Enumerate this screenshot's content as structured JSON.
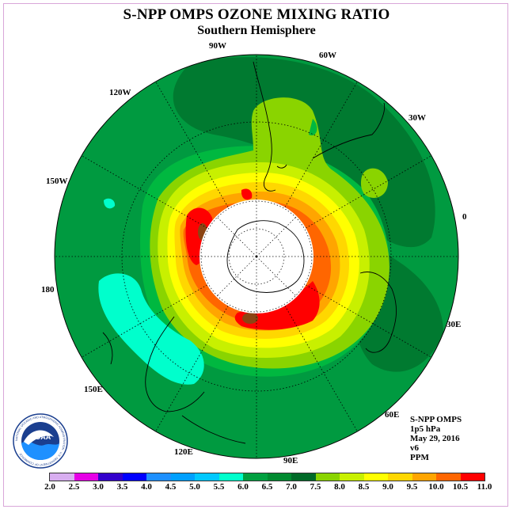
{
  "title": "S-NPP OMPS OZONE MIXING RATIO",
  "subtitle": "Southern Hemisphere",
  "longitude_labels": {
    "w90": "90W",
    "w60": "60W",
    "w30": "30W",
    "w120": "120W",
    "w150": "150W",
    "zero": "0",
    "e180": "180",
    "e30": "30E",
    "e150": "150E",
    "e60": "60E",
    "e120": "120E",
    "e90": "90E"
  },
  "info": {
    "instrument": "S-NPP OMPS",
    "level": "1p5 hPa",
    "date": "May 29, 2016",
    "version": "v6",
    "units": "PPM"
  },
  "logo": {
    "text": "NOAA",
    "ring_text": "NATIONAL OCEANIC AND ATMOSPHERIC ADMINISTRATION · U.S. DEPARTMENT OF COMMERCE"
  },
  "colorbar": {
    "ticks": [
      "2.0",
      "2.5",
      "3.0",
      "3.5",
      "4.0",
      "4.5",
      "5.0",
      "5.5",
      "6.0",
      "6.5",
      "7.0",
      "7.5",
      "8.0",
      "8.5",
      "9.0",
      "9.5",
      "10.0",
      "10.5",
      "11.0"
    ],
    "colors": [
      "#b07de0",
      "#d8aef0",
      "#e600e6",
      "#3300cc",
      "#0000ff",
      "#1e90ff",
      "#00a0ff",
      "#00c8ff",
      "#00ffcc",
      "#00a040",
      "#008a30",
      "#006a28",
      "#8ad400",
      "#c8f000",
      "#ffff00",
      "#ffd700",
      "#ffa500",
      "#ff6600",
      "#ff0000",
      "#8b4513"
    ]
  }
}
